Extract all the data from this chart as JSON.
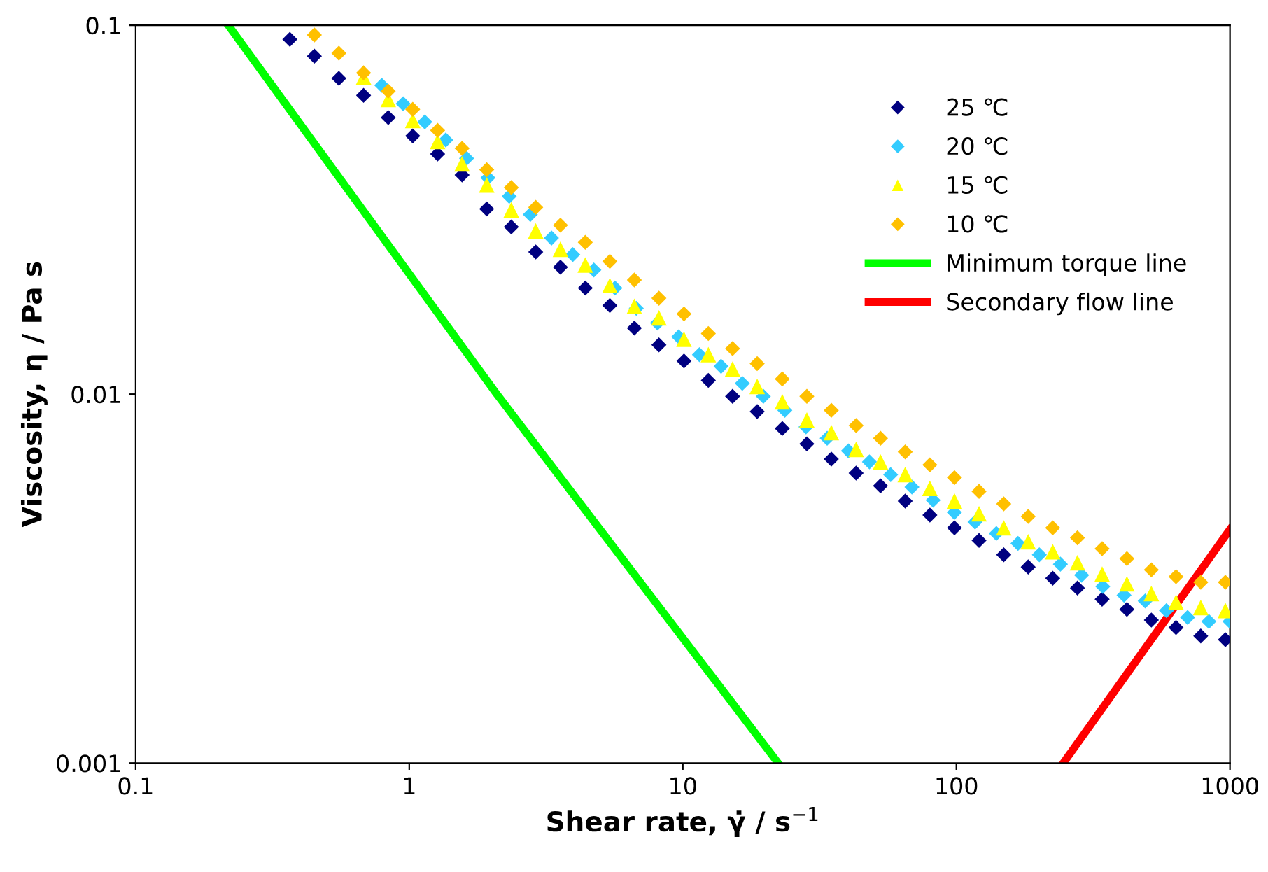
{
  "chart_data": {
    "type": "scatter",
    "xlabel": "Shear rate, γ̇ / s$^{−1}$",
    "ylabel": "Viscosity, η / Pa s",
    "log": "xy",
    "xlim": [
      0.1,
      1000
    ],
    "ylim": [
      0.001,
      0.1
    ],
    "xticks": [
      0.1,
      1,
      10,
      100,
      1000
    ],
    "yticks": [
      0.001,
      0.01,
      0.1
    ],
    "grid": false,
    "legend": "top right",
    "series": [
      {
        "name": "25 ℃",
        "color": "#000080",
        "marker": "diamond",
        "x": [
          0.366,
          0.45,
          0.553,
          0.681,
          0.838,
          1.03,
          1.27,
          1.56,
          1.92,
          2.36,
          2.9,
          3.57,
          4.4,
          5.41,
          6.65,
          8.18,
          10.1,
          12.4,
          15.2,
          18.7,
          23.1,
          28.4,
          34.9,
          43.0,
          52.8,
          65.0,
          80.0,
          98.4,
          121,
          149,
          183,
          225,
          277,
          341,
          420,
          516,
          635,
          782,
          962
        ],
        "values": [
          0.0916,
          0.0825,
          0.0718,
          0.0646,
          0.0562,
          0.0501,
          0.0448,
          0.0393,
          0.0318,
          0.0284,
          0.0243,
          0.0221,
          0.0194,
          0.0174,
          0.0151,
          0.0136,
          0.0123,
          0.0109,
          0.00987,
          0.00897,
          0.00807,
          0.00733,
          0.00667,
          0.00611,
          0.00564,
          0.00513,
          0.0047,
          0.00434,
          0.00401,
          0.00367,
          0.0034,
          0.00317,
          0.00298,
          0.00278,
          0.00261,
          0.00244,
          0.00233,
          0.00221,
          0.00216
        ]
      },
      {
        "name": "20 ℃",
        "color": "#33ccff",
        "marker": "diamond",
        "x": [
          0.794,
          0.95,
          1.14,
          1.36,
          1.62,
          1.94,
          2.32,
          2.77,
          3.31,
          3.96,
          4.73,
          5.65,
          6.76,
          8.08,
          9.66,
          11.5,
          13.8,
          16.5,
          19.7,
          23.6,
          28.2,
          33.7,
          40.3,
          48.1,
          57.5,
          68.8,
          82.2,
          98.3,
          117,
          140,
          168,
          201,
          240,
          287,
          343,
          410,
          490,
          586,
          700,
          837,
          1000
        ],
        "values": [
          0.0687,
          0.0613,
          0.0547,
          0.0489,
          0.0436,
          0.0386,
          0.0344,
          0.0307,
          0.0265,
          0.0239,
          0.0217,
          0.0194,
          0.0171,
          0.0156,
          0.0143,
          0.0128,
          0.0119,
          0.0107,
          0.00987,
          0.00904,
          0.00815,
          0.00759,
          0.00702,
          0.00655,
          0.00605,
          0.0056,
          0.00516,
          0.00478,
          0.0045,
          0.00419,
          0.00394,
          0.00367,
          0.00346,
          0.00323,
          0.00301,
          0.00285,
          0.00275,
          0.00259,
          0.00248,
          0.00242,
          0.00242
        ]
      },
      {
        "name": "15 ℃",
        "color": "#ffff00",
        "marker": "triangle",
        "x": [
          0.681,
          0.838,
          1.03,
          1.27,
          1.56,
          1.92,
          2.36,
          2.9,
          3.57,
          4.4,
          5.41,
          6.65,
          8.18,
          10.1,
          12.4,
          15.2,
          18.7,
          23.1,
          28.4,
          34.9,
          43.0,
          52.8,
          65.0,
          80.0,
          98.4,
          121,
          149,
          183,
          225,
          277,
          341,
          420,
          516,
          635,
          782,
          962
        ],
        "values": [
          0.0724,
          0.0629,
          0.0552,
          0.0484,
          0.0421,
          0.0369,
          0.0316,
          0.0277,
          0.0247,
          0.0224,
          0.0197,
          0.0173,
          0.0161,
          0.0141,
          0.0128,
          0.0117,
          0.0105,
          0.00953,
          0.00851,
          0.00787,
          0.00708,
          0.00655,
          0.00605,
          0.00555,
          0.00513,
          0.00474,
          0.00434,
          0.00398,
          0.00374,
          0.00349,
          0.00325,
          0.00306,
          0.00288,
          0.00273,
          0.00264,
          0.00259
        ]
      },
      {
        "name": "10 ℃",
        "color": "#ffc000",
        "marker": "diamond",
        "x": [
          0.45,
          0.553,
          0.681,
          0.838,
          1.03,
          1.27,
          1.56,
          1.92,
          2.36,
          2.9,
          3.57,
          4.4,
          5.41,
          6.65,
          8.18,
          10.1,
          12.4,
          15.2,
          18.7,
          23.1,
          28.4,
          34.9,
          43.0,
          52.8,
          65.0,
          80.0,
          98.4,
          121,
          149,
          183,
          225,
          277,
          341,
          420,
          516,
          635,
          782,
          962
        ],
        "values": [
          0.0941,
          0.084,
          0.0743,
          0.0663,
          0.0592,
          0.0519,
          0.0464,
          0.0406,
          0.0363,
          0.0321,
          0.0287,
          0.0258,
          0.0229,
          0.0204,
          0.0182,
          0.0165,
          0.0146,
          0.0133,
          0.0121,
          0.011,
          0.00987,
          0.00904,
          0.00822,
          0.00759,
          0.00697,
          0.00643,
          0.00594,
          0.00545,
          0.00504,
          0.00466,
          0.00434,
          0.00408,
          0.00381,
          0.00358,
          0.00334,
          0.0032,
          0.00309,
          0.00309
        ]
      },
      {
        "name": "Minimum torque line",
        "type": "line",
        "color": "#00ff00",
        "marker": "none",
        "line_style": "solid",
        "x": [
          0.218,
          2.09,
          22.3
        ],
        "values": [
          0.1,
          0.01,
          0.001
        ]
      },
      {
        "name": "Secondary flow line",
        "type": "line",
        "color": "#ff0000",
        "marker": "none",
        "line_style": "solid",
        "x": [
          246,
          1000
        ],
        "values": [
          0.001,
          0.0043
        ]
      }
    ]
  }
}
